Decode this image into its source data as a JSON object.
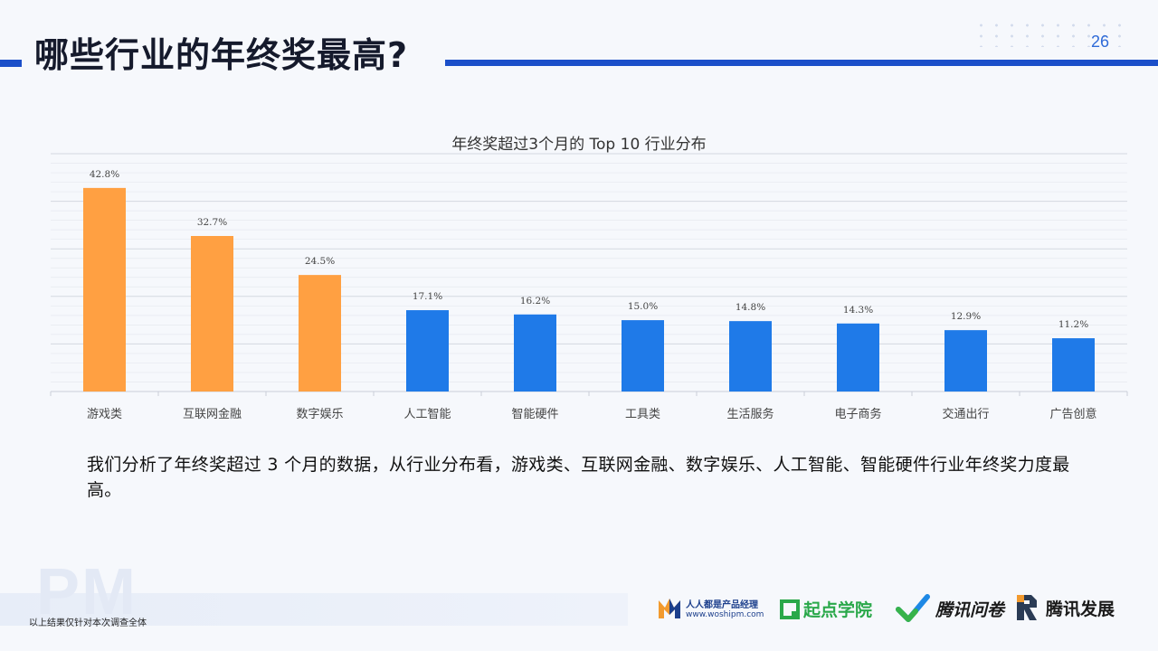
{
  "slide": {
    "title": "哪些行业的年终奖最高?",
    "page_number": "26",
    "body_text": "我们分析了年终奖超过 3 个月的数据，从行业分布看，游戏类、互联网金融、数字娱乐、人工智能、智能硬件行业年终奖力度最高。",
    "footnote": "以上结果仅针对本次调查全体",
    "watermark": "PM"
  },
  "logos": {
    "woshipm_line1": "人人都是产品经理",
    "woshipm_line2": "www.woshipm.com",
    "qidian": "起点学院",
    "wenjuan": "腾讯问卷",
    "fazhan": "腾讯发展"
  },
  "colors": {
    "highlight": "#ffa042",
    "normal": "#1f7ae8",
    "accent_bar": "#1b4fc9"
  },
  "chart_data": {
    "type": "bar",
    "title": "年终奖超过3个月的 Top 10 行业分布",
    "categories": [
      "游戏类",
      "互联网金融",
      "数字娱乐",
      "人工智能",
      "智能硬件",
      "工具类",
      "生活服务",
      "电子商务",
      "交通出行",
      "广告创意"
    ],
    "values": [
      42.8,
      32.7,
      24.5,
      17.1,
      16.2,
      15.0,
      14.8,
      14.3,
      12.9,
      11.2
    ],
    "labels": [
      "42.8%",
      "32.7%",
      "24.5%",
      "17.1%",
      "16.2%",
      "15.0%",
      "14.8%",
      "14.3%",
      "12.9%",
      "11.2%"
    ],
    "highlight_count": 3,
    "ylim": [
      0,
      50
    ],
    "grid": true,
    "xlabel": "",
    "ylabel": ""
  }
}
